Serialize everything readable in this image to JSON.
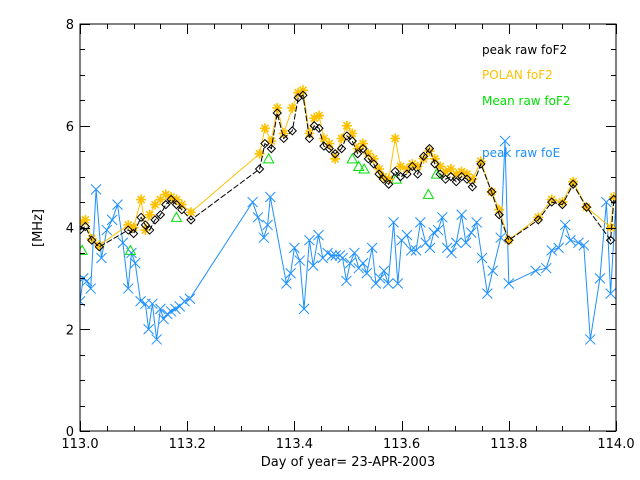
{
  "chart_data": {
    "type": "line",
    "title": "",
    "xlabel": "Day of year= 23-APR-2003",
    "ylabel": "[MHz]",
    "xlim": [
      113.0,
      114.0
    ],
    "ylim": [
      0,
      8
    ],
    "xticks": [
      "113.0",
      "113.2",
      "113.4",
      "113.6",
      "113.8",
      "114.0"
    ],
    "xtick_values": [
      113.0,
      113.2,
      113.4,
      113.6,
      113.8,
      114.0
    ],
    "yticks": [
      "0",
      "2",
      "4",
      "6",
      "8"
    ],
    "ytick_values": [
      0,
      2,
      4,
      6,
      8
    ],
    "legend_position": "top-right",
    "series": [
      {
        "name": "peak raw foF2",
        "color": "#000000",
        "marker": "diamond",
        "x": [
          113.0,
          113.01,
          113.022,
          113.036,
          113.09,
          113.1,
          113.114,
          113.122,
          113.13,
          113.14,
          113.15,
          113.16,
          113.17,
          113.18,
          113.19,
          113.207,
          113.335,
          113.345,
          113.357,
          113.368,
          113.38,
          113.396,
          113.407,
          113.416,
          113.428,
          113.437,
          113.446,
          113.455,
          113.465,
          113.476,
          113.488,
          113.498,
          113.508,
          113.518,
          113.528,
          113.538,
          113.548,
          113.558,
          113.566,
          113.576,
          113.588,
          113.598,
          113.61,
          113.62,
          113.63,
          113.641,
          113.652,
          113.662,
          113.672,
          113.682,
          113.692,
          113.702,
          113.712,
          113.722,
          113.732,
          113.748,
          113.768,
          113.782,
          113.8,
          113.855,
          113.88,
          113.9,
          113.92,
          113.945,
          113.99,
          113.996,
          114.005
        ],
        "y": [
          3.95,
          4.02,
          3.75,
          3.62,
          3.95,
          3.88,
          4.2,
          4.05,
          3.95,
          4.15,
          4.25,
          4.45,
          4.55,
          4.45,
          4.35,
          4.15,
          5.15,
          5.65,
          5.55,
          6.25,
          5.75,
          5.9,
          6.55,
          6.6,
          5.75,
          6.0,
          5.95,
          5.6,
          5.55,
          5.45,
          5.55,
          5.8,
          5.7,
          5.45,
          5.55,
          5.35,
          5.25,
          5.05,
          4.95,
          4.85,
          5.1,
          5.0,
          5.05,
          5.2,
          5.05,
          5.4,
          5.55,
          5.25,
          5.05,
          4.95,
          5.0,
          4.9,
          5.0,
          4.95,
          4.8,
          5.25,
          4.7,
          4.25,
          3.75,
          4.15,
          4.5,
          4.45,
          4.85,
          4.4,
          3.75,
          4.55,
          4.5
        ]
      },
      {
        "name": "POLAN foF2",
        "color": "#ffc000",
        "marker": "star",
        "x": [
          113.0,
          113.01,
          113.022,
          113.036,
          113.09,
          113.1,
          113.114,
          113.122,
          113.13,
          113.14,
          113.15,
          113.16,
          113.17,
          113.18,
          113.19,
          113.207,
          113.335,
          113.345,
          113.357,
          113.368,
          113.38,
          113.396,
          113.407,
          113.416,
          113.428,
          113.437,
          113.446,
          113.455,
          113.465,
          113.476,
          113.488,
          113.498,
          113.508,
          113.518,
          113.528,
          113.538,
          113.548,
          113.558,
          113.566,
          113.576,
          113.588,
          113.598,
          113.61,
          113.62,
          113.63,
          113.641,
          113.652,
          113.662,
          113.672,
          113.682,
          113.692,
          113.702,
          113.712,
          113.722,
          113.732,
          113.748,
          113.768,
          113.782,
          113.8,
          113.855,
          113.88,
          113.9,
          113.92,
          113.945,
          113.99,
          113.996,
          114.005
        ],
        "y": [
          4.1,
          4.15,
          3.78,
          3.65,
          4.05,
          4.0,
          4.55,
          3.95,
          4.25,
          4.45,
          4.55,
          4.65,
          4.6,
          4.55,
          4.45,
          4.3,
          5.45,
          5.95,
          5.7,
          6.35,
          5.85,
          6.35,
          6.65,
          6.7,
          5.85,
          6.15,
          6.2,
          5.75,
          5.65,
          5.35,
          5.75,
          6.0,
          5.85,
          5.55,
          5.65,
          5.45,
          5.35,
          5.15,
          5.0,
          4.95,
          5.75,
          5.2,
          5.15,
          5.25,
          5.2,
          5.35,
          5.5,
          5.35,
          5.2,
          5.1,
          5.15,
          5.05,
          5.1,
          5.05,
          4.95,
          5.3,
          4.7,
          4.35,
          3.75,
          4.2,
          4.55,
          4.5,
          4.9,
          4.4,
          4.0,
          4.6,
          4.55
        ]
      },
      {
        "name": "Mean raw foF2",
        "color": "#00e000",
        "marker": "triangle",
        "x": [
          113.004,
          113.094,
          113.18,
          113.352,
          113.508,
          113.52,
          113.53,
          113.59,
          113.65,
          113.665
        ],
        "y": [
          3.55,
          3.55,
          4.2,
          5.35,
          5.35,
          5.2,
          5.15,
          4.95,
          4.65,
          5.05
        ]
      },
      {
        "name": "peak raw foE",
        "color": "#1e90ff",
        "marker": "x",
        "x": [
          113.0,
          113.006,
          113.013,
          113.02,
          113.03,
          113.04,
          113.05,
          113.06,
          113.07,
          113.08,
          113.09,
          113.096,
          113.103,
          113.113,
          113.122,
          113.128,
          113.135,
          113.143,
          113.15,
          113.156,
          113.163,
          113.17,
          113.178,
          113.186,
          113.195,
          113.205,
          113.322,
          113.332,
          113.343,
          113.35,
          113.355,
          113.385,
          113.393,
          113.4,
          113.41,
          113.418,
          113.428,
          113.435,
          113.445,
          113.453,
          113.462,
          113.47,
          113.477,
          113.485,
          113.49,
          113.497,
          113.504,
          113.512,
          113.52,
          113.528,
          113.535,
          113.545,
          113.552,
          113.56,
          113.567,
          113.575,
          113.585,
          113.593,
          113.6,
          113.61,
          113.618,
          113.627,
          113.635,
          113.645,
          113.653,
          113.66,
          113.668,
          113.676,
          113.685,
          113.693,
          113.702,
          113.712,
          113.72,
          113.73,
          113.74,
          113.75,
          113.76,
          113.77,
          113.785,
          113.793,
          113.8,
          113.85,
          113.87,
          113.88,
          113.893,
          113.905,
          113.915,
          113.93,
          113.94,
          113.952,
          113.97,
          113.982,
          113.99,
          114.0
        ],
        "y": [
          2.55,
          3.0,
          2.95,
          2.8,
          4.75,
          3.4,
          3.95,
          4.15,
          4.45,
          3.7,
          2.8,
          3.5,
          3.3,
          2.55,
          2.5,
          2.0,
          2.5,
          1.8,
          2.4,
          2.2,
          2.3,
          2.35,
          2.4,
          2.45,
          2.55,
          2.6,
          4.5,
          4.2,
          3.8,
          4.05,
          4.6,
          2.9,
          3.1,
          3.6,
          3.35,
          2.4,
          3.75,
          3.25,
          3.85,
          3.4,
          3.5,
          3.45,
          3.45,
          3.45,
          3.4,
          2.95,
          3.3,
          3.5,
          3.2,
          3.3,
          3.1,
          3.6,
          2.9,
          3.0,
          3.15,
          2.9,
          4.1,
          2.9,
          3.75,
          3.85,
          3.55,
          3.55,
          4.1,
          3.7,
          3.6,
          3.9,
          3.95,
          4.2,
          3.6,
          3.5,
          3.7,
          4.25,
          3.7,
          3.9,
          4.1,
          3.4,
          2.7,
          3.15,
          3.8,
          5.7,
          2.9,
          3.15,
          3.2,
          3.55,
          3.6,
          4.05,
          3.75,
          3.7,
          3.65,
          1.8,
          3.0,
          4.5,
          2.7,
          4.55
        ]
      }
    ]
  }
}
